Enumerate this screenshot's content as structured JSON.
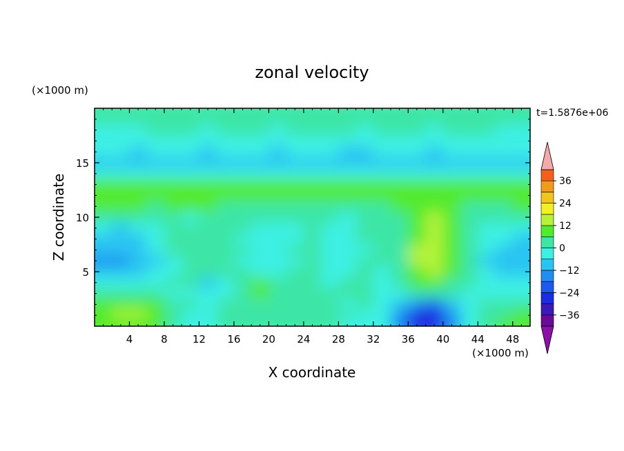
{
  "chart_data": {
    "type": "heatmap",
    "title": "zonal velocity",
    "xlabel": "X coordinate",
    "ylabel": "Z coordinate",
    "x_unit": "(×1000 m)",
    "y_unit": "(×1000 m)",
    "time_label": "t=1.5876e+06",
    "xlim": [
      0,
      50
    ],
    "ylim": [
      0,
      20
    ],
    "x_ticks": [
      4,
      8,
      12,
      16,
      20,
      24,
      28,
      32,
      36,
      40,
      44,
      48
    ],
    "y_ticks": [
      5,
      10,
      15
    ],
    "colorbar": {
      "levels": [
        -42,
        -36,
        -30,
        -24,
        -18,
        -12,
        -6,
        0,
        6,
        12,
        18,
        24,
        30,
        36,
        42
      ],
      "tick_labels": [
        "36",
        "24",
        "12",
        "0",
        "−12",
        "−24",
        "−36"
      ],
      "tick_values": [
        36,
        24,
        12,
        0,
        -12,
        -24,
        -36
      ],
      "colors": [
        "#6a0a99",
        "#3a1ab8",
        "#1a2de0",
        "#1c59ee",
        "#1f8df2",
        "#29c5f2",
        "#3df0e3",
        "#3ee6a6",
        "#52ea2e",
        "#b6f23a",
        "#f2f024",
        "#f2c51c",
        "#f29a1c",
        "#f2601c",
        "#ea2a22",
        "#f4aaaa"
      ],
      "extend_low_color": "#8a10a8",
      "extend_high_color": "#f4aaaa"
    },
    "rows": [
      {
        "z": 19,
        "u": [
          3,
          3,
          4,
          3,
          3,
          4,
          4,
          3,
          2,
          3,
          4,
          3,
          4,
          4,
          3,
          3,
          4,
          3,
          3,
          4,
          3,
          3,
          4,
          3,
          3
        ]
      },
      {
        "z": 18,
        "u": [
          -1,
          -2,
          -1,
          0,
          1,
          0,
          -1,
          0,
          1,
          0,
          -1,
          0,
          1,
          1,
          0,
          -1,
          0,
          1,
          0,
          -1,
          0,
          1,
          0,
          -1,
          -1
        ]
      },
      {
        "z": 17,
        "u": [
          -3,
          -4,
          -3,
          -2,
          -1,
          -2,
          -3,
          -2,
          -1,
          -2,
          -3,
          -2,
          -1,
          -2,
          -3,
          -2,
          -1,
          -2,
          -3,
          -2,
          -1,
          -2,
          -3,
          -3,
          -2
        ]
      },
      {
        "z": 16,
        "u": [
          -5,
          -6,
          -7,
          -6,
          -5,
          -6,
          -7,
          -6,
          -5,
          -6,
          -7,
          -6,
          -5,
          -6,
          -7,
          -7,
          -6,
          -5,
          -6,
          -7,
          -6,
          -5,
          -6,
          -6,
          -5
        ]
      },
      {
        "z": 15,
        "u": [
          -8,
          -8,
          -7,
          -8,
          -9,
          -8,
          -7,
          -8,
          -9,
          -8,
          -7,
          -8,
          -9,
          -8,
          -7,
          -8,
          -9,
          -8,
          -7,
          -8,
          -9,
          -8,
          -7,
          -8,
          -8
        ]
      },
      {
        "z": 14,
        "u": [
          -4,
          -5,
          -4,
          -3,
          -4,
          -5,
          -4,
          -3,
          -4,
          -5,
          -4,
          -3,
          -4,
          -5,
          -4,
          -3,
          -4,
          -5,
          -4,
          -3,
          -4,
          -5,
          -4,
          -4,
          -3
        ]
      },
      {
        "z": 13,
        "u": [
          7,
          6,
          7,
          8,
          7,
          6,
          7,
          8,
          7,
          6,
          7,
          8,
          7,
          6,
          7,
          8,
          7,
          6,
          7,
          8,
          7,
          6,
          7,
          7,
          6
        ]
      },
      {
        "z": 12,
        "u": [
          10,
          11,
          10,
          9,
          10,
          11,
          10,
          9,
          10,
          9,
          8,
          9,
          10,
          9,
          8,
          9,
          10,
          11,
          10,
          9,
          8,
          9,
          10,
          9,
          8
        ]
      },
      {
        "z": 11,
        "u": [
          7,
          8,
          6,
          5,
          6,
          7,
          6,
          5,
          3,
          4,
          5,
          3,
          2,
          4,
          5,
          3,
          5,
          7,
          9,
          8,
          6,
          5,
          4,
          5,
          6
        ]
      },
      {
        "z": 10,
        "u": [
          2,
          1,
          0,
          1,
          0,
          -1,
          1,
          2,
          1,
          2,
          0,
          1,
          2,
          0,
          -1,
          1,
          2,
          4,
          10,
          13,
          6,
          3,
          1,
          2,
          3
        ]
      },
      {
        "z": 9,
        "u": [
          -6,
          -7,
          -6,
          -2,
          1,
          3,
          4,
          2,
          0,
          -2,
          -3,
          -1,
          1,
          -4,
          -2,
          1,
          1,
          3,
          11,
          14,
          7,
          1,
          -2,
          -3,
          -4
        ]
      },
      {
        "z": 8,
        "u": [
          -8,
          -9,
          -8,
          -3,
          1,
          4,
          5,
          2,
          -1,
          -3,
          -6,
          -4,
          2,
          -4,
          -3,
          2,
          1,
          2,
          11,
          14,
          8,
          2,
          -4,
          -6,
          -7
        ]
      },
      {
        "z": 7,
        "u": [
          -9,
          -10,
          -9,
          -5,
          0,
          4,
          5,
          2,
          0,
          -2,
          -3,
          0,
          3,
          -5,
          -4,
          -1,
          1,
          4,
          12,
          14,
          8,
          2,
          -6,
          -8,
          -9
        ]
      },
      {
        "z": 6,
        "u": [
          -15,
          -16,
          -12,
          -8,
          -3,
          2,
          3,
          1,
          -1,
          -1,
          -2,
          -1,
          2,
          -3,
          -1,
          2,
          1,
          4,
          13,
          15,
          8,
          1,
          -7,
          -9,
          -10
        ]
      },
      {
        "z": 5,
        "u": [
          -9,
          -10,
          -8,
          -5,
          -1,
          2,
          2,
          1,
          1,
          -2,
          -1,
          0,
          1,
          -2,
          -1,
          2,
          -1,
          3,
          11,
          12,
          7,
          0,
          -6,
          -8,
          -9
        ]
      },
      {
        "z": 4,
        "u": [
          -2,
          -3,
          -2,
          -1,
          0,
          1,
          -8,
          -3,
          3,
          8,
          1,
          0,
          2,
          -1,
          0,
          3,
          -2,
          2,
          6,
          7,
          4,
          0,
          -3,
          -4,
          -5
        ]
      },
      {
        "z": 3,
        "u": [
          2,
          3,
          3,
          1,
          -2,
          -3,
          -5,
          -2,
          2,
          8,
          2,
          1,
          2,
          1,
          0,
          2,
          -3,
          -1,
          1,
          2,
          1,
          -1,
          -4,
          -5,
          -4
        ]
      },
      {
        "z": 2,
        "u": [
          8,
          10,
          10,
          7,
          2,
          0,
          -1,
          1,
          2,
          2,
          1,
          0,
          1,
          0,
          -1,
          0,
          -3,
          -10,
          -18,
          -20,
          -12,
          -4,
          0,
          2,
          3
        ]
      },
      {
        "z": 1,
        "u": [
          11,
          12,
          12,
          8,
          2,
          -2,
          -1,
          4,
          5,
          3,
          1,
          2,
          2,
          1,
          0,
          -2,
          -5,
          -15,
          -28,
          -30,
          -18,
          -6,
          1,
          5,
          9
        ]
      },
      {
        "z": 0.3,
        "u": [
          9,
          10,
          10,
          6,
          1,
          -4,
          -2,
          3,
          4,
          2,
          0,
          1,
          2,
          0,
          -1,
          -3,
          -6,
          -14,
          -26,
          -28,
          -17,
          -5,
          2,
          7,
          10
        ]
      }
    ]
  }
}
